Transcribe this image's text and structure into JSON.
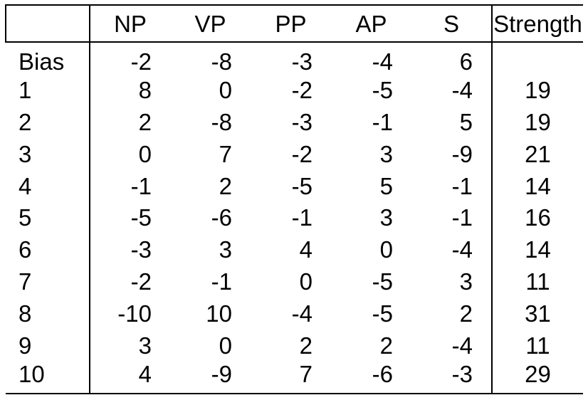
{
  "table": {
    "headers": [
      "",
      "NP",
      "VP",
      "PP",
      "AP",
      "S",
      "Strength"
    ],
    "rows": [
      [
        "Bias",
        "-2",
        "-8",
        "-3",
        "-4",
        "6",
        ""
      ],
      [
        "1",
        "8",
        "0",
        "-2",
        "-5",
        "-4",
        "19"
      ],
      [
        "2",
        "2",
        "-8",
        "-3",
        "-1",
        "5",
        "19"
      ],
      [
        "3",
        "0",
        "7",
        "-2",
        "3",
        "-9",
        "21"
      ],
      [
        "4",
        "-1",
        "2",
        "-5",
        "5",
        "-1",
        "14"
      ],
      [
        "5",
        "-5",
        "-6",
        "-1",
        "3",
        "-1",
        "16"
      ],
      [
        "6",
        "-3",
        "3",
        "4",
        "0",
        "-4",
        "14"
      ],
      [
        "7",
        "-2",
        "-1",
        "0",
        "-5",
        "3",
        "11"
      ],
      [
        "8",
        "-10",
        "10",
        "-4",
        "-5",
        "2",
        "31"
      ],
      [
        "9",
        "3",
        "0",
        "2",
        "2",
        "-4",
        "11"
      ],
      [
        "10",
        "4",
        "-9",
        "7",
        "-6",
        "-3",
        "29"
      ]
    ]
  }
}
